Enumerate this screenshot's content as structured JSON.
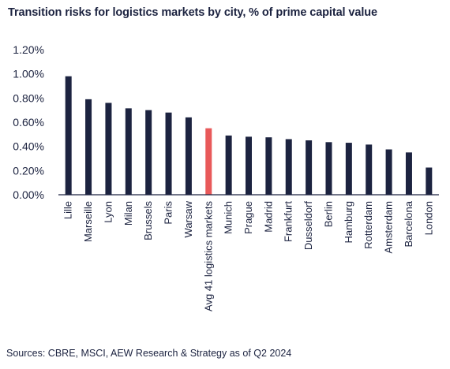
{
  "header": {
    "title": "Transition risks for logistics markets by city, % of prime capital value"
  },
  "footer": {
    "source": "Sources: CBRE, MSCI, AEW Research & Strategy as of Q2 2024"
  },
  "chart_data": {
    "type": "bar",
    "categories": [
      "Lille",
      "Marseille",
      "Lyon",
      "Milan",
      "Brussels",
      "Paris",
      "Warsaw",
      "Avg 41 logistics markets",
      "Munich",
      "Prague",
      "Madrid",
      "Frankfurt",
      "Dusseldorf",
      "Berlin",
      "Hamburg",
      "Rotterdam",
      "Amsterdam",
      "Barcelona",
      "London"
    ],
    "values": [
      0.98,
      0.79,
      0.76,
      0.715,
      0.7,
      0.68,
      0.64,
      0.55,
      0.49,
      0.48,
      0.475,
      0.46,
      0.45,
      0.435,
      0.43,
      0.415,
      0.375,
      0.35,
      0.225
    ],
    "highlight_index": 7,
    "colors": {
      "bar": "#1c2340",
      "highlight": "#e8595a",
      "axis": "#1c2340"
    },
    "ylim": [
      0,
      1.2
    ],
    "yticks": [
      "0.00%",
      "0.20%",
      "0.40%",
      "0.60%",
      "0.80%",
      "1.00%",
      "1.20%"
    ],
    "xlabel": "",
    "ylabel": ""
  }
}
